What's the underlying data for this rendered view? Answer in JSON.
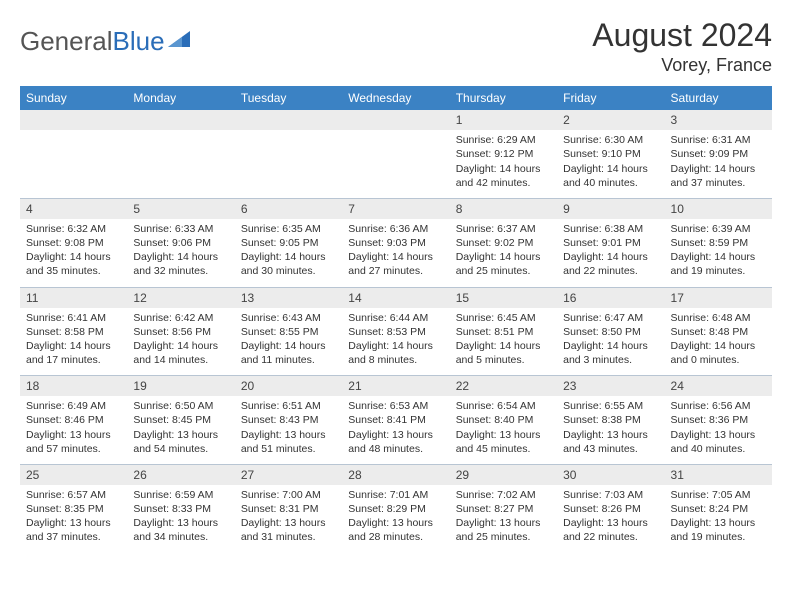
{
  "logo": {
    "text1": "General",
    "text2": "Blue"
  },
  "title": "August 2024",
  "location": "Vorey, France",
  "colors": {
    "header_bg": "#3b82c4",
    "header_fg": "#ffffff",
    "daynum_bg": "#ececec",
    "row_border": "#b8c5d3",
    "logo_gray": "#555555",
    "logo_blue": "#2a6db8"
  },
  "day_headers": [
    "Sunday",
    "Monday",
    "Tuesday",
    "Wednesday",
    "Thursday",
    "Friday",
    "Saturday"
  ],
  "weeks": [
    [
      null,
      null,
      null,
      null,
      {
        "n": "1",
        "sr": "6:29 AM",
        "ss": "9:12 PM",
        "dl": "14 hours and 42 minutes."
      },
      {
        "n": "2",
        "sr": "6:30 AM",
        "ss": "9:10 PM",
        "dl": "14 hours and 40 minutes."
      },
      {
        "n": "3",
        "sr": "6:31 AM",
        "ss": "9:09 PM",
        "dl": "14 hours and 37 minutes."
      }
    ],
    [
      {
        "n": "4",
        "sr": "6:32 AM",
        "ss": "9:08 PM",
        "dl": "14 hours and 35 minutes."
      },
      {
        "n": "5",
        "sr": "6:33 AM",
        "ss": "9:06 PM",
        "dl": "14 hours and 32 minutes."
      },
      {
        "n": "6",
        "sr": "6:35 AM",
        "ss": "9:05 PM",
        "dl": "14 hours and 30 minutes."
      },
      {
        "n": "7",
        "sr": "6:36 AM",
        "ss": "9:03 PM",
        "dl": "14 hours and 27 minutes."
      },
      {
        "n": "8",
        "sr": "6:37 AM",
        "ss": "9:02 PM",
        "dl": "14 hours and 25 minutes."
      },
      {
        "n": "9",
        "sr": "6:38 AM",
        "ss": "9:01 PM",
        "dl": "14 hours and 22 minutes."
      },
      {
        "n": "10",
        "sr": "6:39 AM",
        "ss": "8:59 PM",
        "dl": "14 hours and 19 minutes."
      }
    ],
    [
      {
        "n": "11",
        "sr": "6:41 AM",
        "ss": "8:58 PM",
        "dl": "14 hours and 17 minutes."
      },
      {
        "n": "12",
        "sr": "6:42 AM",
        "ss": "8:56 PM",
        "dl": "14 hours and 14 minutes."
      },
      {
        "n": "13",
        "sr": "6:43 AM",
        "ss": "8:55 PM",
        "dl": "14 hours and 11 minutes."
      },
      {
        "n": "14",
        "sr": "6:44 AM",
        "ss": "8:53 PM",
        "dl": "14 hours and 8 minutes."
      },
      {
        "n": "15",
        "sr": "6:45 AM",
        "ss": "8:51 PM",
        "dl": "14 hours and 5 minutes."
      },
      {
        "n": "16",
        "sr": "6:47 AM",
        "ss": "8:50 PM",
        "dl": "14 hours and 3 minutes."
      },
      {
        "n": "17",
        "sr": "6:48 AM",
        "ss": "8:48 PM",
        "dl": "14 hours and 0 minutes."
      }
    ],
    [
      {
        "n": "18",
        "sr": "6:49 AM",
        "ss": "8:46 PM",
        "dl": "13 hours and 57 minutes."
      },
      {
        "n": "19",
        "sr": "6:50 AM",
        "ss": "8:45 PM",
        "dl": "13 hours and 54 minutes."
      },
      {
        "n": "20",
        "sr": "6:51 AM",
        "ss": "8:43 PM",
        "dl": "13 hours and 51 minutes."
      },
      {
        "n": "21",
        "sr": "6:53 AM",
        "ss": "8:41 PM",
        "dl": "13 hours and 48 minutes."
      },
      {
        "n": "22",
        "sr": "6:54 AM",
        "ss": "8:40 PM",
        "dl": "13 hours and 45 minutes."
      },
      {
        "n": "23",
        "sr": "6:55 AM",
        "ss": "8:38 PM",
        "dl": "13 hours and 43 minutes."
      },
      {
        "n": "24",
        "sr": "6:56 AM",
        "ss": "8:36 PM",
        "dl": "13 hours and 40 minutes."
      }
    ],
    [
      {
        "n": "25",
        "sr": "6:57 AM",
        "ss": "8:35 PM",
        "dl": "13 hours and 37 minutes."
      },
      {
        "n": "26",
        "sr": "6:59 AM",
        "ss": "8:33 PM",
        "dl": "13 hours and 34 minutes."
      },
      {
        "n": "27",
        "sr": "7:00 AM",
        "ss": "8:31 PM",
        "dl": "13 hours and 31 minutes."
      },
      {
        "n": "28",
        "sr": "7:01 AM",
        "ss": "8:29 PM",
        "dl": "13 hours and 28 minutes."
      },
      {
        "n": "29",
        "sr": "7:02 AM",
        "ss": "8:27 PM",
        "dl": "13 hours and 25 minutes."
      },
      {
        "n": "30",
        "sr": "7:03 AM",
        "ss": "8:26 PM",
        "dl": "13 hours and 22 minutes."
      },
      {
        "n": "31",
        "sr": "7:05 AM",
        "ss": "8:24 PM",
        "dl": "13 hours and 19 minutes."
      }
    ]
  ],
  "labels": {
    "sunrise": "Sunrise:",
    "sunset": "Sunset:",
    "daylight": "Daylight:"
  }
}
